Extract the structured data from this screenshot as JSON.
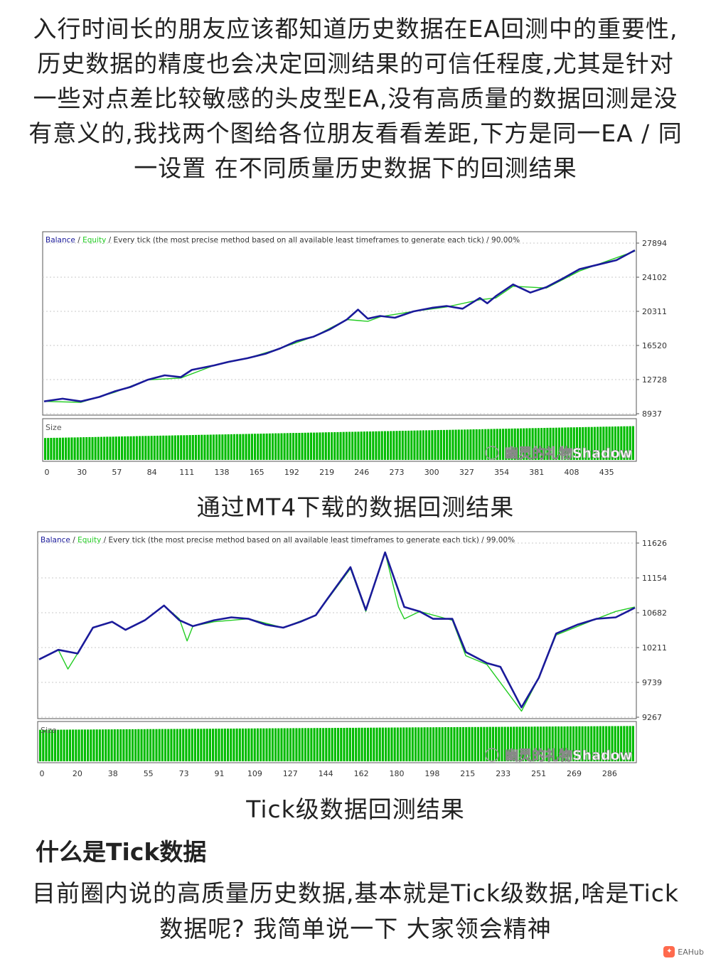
{
  "intro_text": "入行时间长的朋友应该都知道历史数据在EA回测中的重要性,历史数据的精度也会决定回测结果的可信任程度,尤其是针对一些对点差比较敏感的头皮型EA,没有高质量的数据回测是没有意义的,我找两个图给各位朋友看看差距,下方是同一EA / 同一设置 在不同质量历史数据下的回测结果",
  "caption1": "通过MT4下载的数据回测结果",
  "caption2": "Tick级数据回测结果",
  "section_title": "什么是Tick数据",
  "body2": "目前圈内说的高质量历史数据,基本就是Tick级数据,啥是Tick数据呢? 我简单说一下 大家领会精神",
  "footer_logo_text": "EAHub",
  "colors": {
    "balance": "#1a1a9a",
    "equity": "#22cc22",
    "size": "#00bb00",
    "grid": "#c8c8c8"
  },
  "chart_data": [
    {
      "type": "line",
      "header": {
        "balance": "Balance",
        "sep1": " / ",
        "equity": "Equity",
        "rest": " / Every tick (the most precise method based on all available least timeframes to generate each tick) / 90.00%"
      },
      "size_label": "Size",
      "watermark": "幽灵的礼物Shadow",
      "watermark_icon": "wechat-icon",
      "ytick_labels": [
        "27894",
        "24102",
        "20311",
        "16520",
        "12728",
        "8937"
      ],
      "ylim": [
        8937,
        27894
      ],
      "xtick_labels": [
        "0",
        "30",
        "57",
        "84",
        "111",
        "138",
        "165",
        "192",
        "219",
        "246",
        "273",
        "300",
        "327",
        "354",
        "381",
        "408",
        "435"
      ],
      "xlim": [
        0,
        480
      ],
      "series": [
        {
          "name": "Balance",
          "x": [
            0,
            15,
            30,
            45,
            57,
            70,
            84,
            98,
            111,
            120,
            138,
            150,
            165,
            180,
            192,
            205,
            219,
            232,
            246,
            255,
            263,
            273,
            285,
            300,
            315,
            327,
            340,
            354,
            360,
            367,
            381,
            395,
            408,
            422,
            435,
            450,
            465,
            480
          ],
          "values": [
            10300,
            10600,
            10300,
            10800,
            11400,
            11900,
            12700,
            13200,
            13000,
            13800,
            14300,
            14700,
            15100,
            15600,
            16200,
            17000,
            17500,
            18300,
            19400,
            20500,
            19500,
            19800,
            19600,
            20300,
            20700,
            20900,
            20600,
            21800,
            21200,
            22000,
            23300,
            22400,
            23000,
            24000,
            25000,
            25500,
            26000,
            27100
          ]
        },
        {
          "name": "Equity",
          "x": [
            0,
            30,
            57,
            84,
            111,
            138,
            165,
            192,
            219,
            246,
            263,
            273,
            300,
            327,
            354,
            367,
            381,
            408,
            435,
            480
          ],
          "values": [
            10300,
            10200,
            11300,
            12700,
            12900,
            14300,
            15100,
            16200,
            17500,
            19400,
            19200,
            19700,
            20300,
            20800,
            21600,
            21800,
            23100,
            22900,
            24800,
            27000
          ]
        }
      ],
      "size_fill": [
        0.55,
        0.85
      ]
    },
    {
      "type": "line",
      "header": {
        "balance": "Balance",
        "sep1": " / ",
        "equity": "Equity",
        "rest": " / Every tick (the most precise method based on all available least timeframes to generate each tick) / 99.00%"
      },
      "size_label": "Size",
      "watermark": "幽灵的礼物Shadow",
      "watermark_icon": "wechat-icon",
      "ytick_labels": [
        "11626",
        "11154",
        "10682",
        "10211",
        "9739",
        "9267"
      ],
      "ylim": [
        9267,
        11626
      ],
      "xtick_labels": [
        "0",
        "20",
        "38",
        "55",
        "73",
        "91",
        "109",
        "127",
        "144",
        "162",
        "180",
        "198",
        "215",
        "233",
        "251",
        "269",
        "286"
      ],
      "xlim": [
        0,
        310
      ],
      "series": [
        {
          "name": "Balance",
          "x": [
            0,
            10,
            20,
            28,
            38,
            45,
            55,
            65,
            73,
            80,
            91,
            100,
            109,
            118,
            127,
            136,
            144,
            150,
            162,
            170,
            180,
            190,
            198,
            205,
            215,
            222,
            233,
            240,
            251,
            260,
            269,
            280,
            290,
            300,
            310
          ],
          "values": [
            10050,
            10180,
            10130,
            10480,
            10560,
            10450,
            10580,
            10780,
            10580,
            10500,
            10580,
            10620,
            10600,
            10520,
            10480,
            10560,
            10650,
            10870,
            11300,
            10720,
            11500,
            10760,
            10700,
            10600,
            10600,
            10150,
            10000,
            9950,
            9400,
            9800,
            10400,
            10520,
            10600,
            10620,
            10750
          ]
        },
        {
          "name": "Equity",
          "x": [
            0,
            10,
            15,
            20,
            28,
            38,
            45,
            55,
            65,
            73,
            77,
            80,
            91,
            109,
            127,
            144,
            162,
            170,
            180,
            187,
            190,
            198,
            215,
            222,
            233,
            251,
            260,
            269,
            290,
            300,
            310
          ],
          "values": [
            10050,
            10180,
            9920,
            10130,
            10480,
            10560,
            10450,
            10580,
            10780,
            10600,
            10300,
            10500,
            10560,
            10600,
            10480,
            10650,
            11280,
            10700,
            11500,
            10760,
            10600,
            10700,
            10580,
            10100,
            9980,
            9350,
            9800,
            10380,
            10600,
            10700,
            10760
          ]
        }
      ],
      "size_fill": [
        0.82,
        0.92
      ]
    }
  ]
}
